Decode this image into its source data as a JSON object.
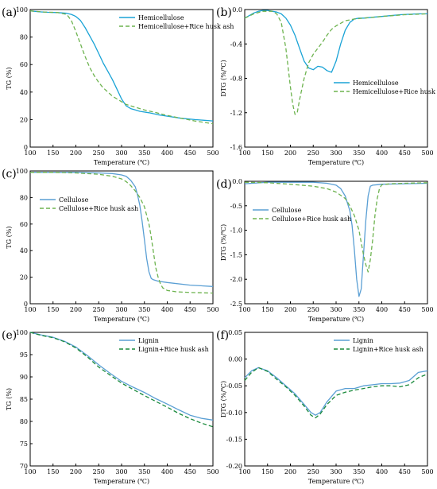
{
  "chart_data": [
    {
      "panel": "(a)",
      "type": "line",
      "xlabel": "Temperature (℃)",
      "ylabel": "TG (%)",
      "xlim": [
        100,
        500
      ],
      "ylim": [
        0,
        100
      ],
      "xticks": [
        100,
        150,
        200,
        250,
        300,
        350,
        400,
        450,
        500
      ],
      "yticks": [
        0,
        20,
        40,
        60,
        80,
        100
      ],
      "legend_position": "top-right",
      "series": [
        {
          "name": "Hemicellulose",
          "color": "#1aa3d6",
          "dash": "solid",
          "x": [
            100,
            120,
            140,
            160,
            180,
            190,
            200,
            210,
            220,
            230,
            240,
            250,
            260,
            270,
            280,
            290,
            300,
            310,
            320,
            330,
            340,
            360,
            380,
            400,
            430,
            460,
            500
          ],
          "y": [
            99,
            98.3,
            98,
            97.8,
            97.3,
            96.5,
            95,
            92,
            87,
            81,
            75,
            68,
            61,
            55,
            49,
            42,
            35,
            30,
            28,
            27,
            26,
            25,
            23.5,
            22.5,
            21,
            20,
            19
          ]
        },
        {
          "name": "Hemicellulose+Rice husk ash",
          "color": "#6db34f",
          "dash": "dashed",
          "x": [
            100,
            130,
            160,
            180,
            190,
            200,
            210,
            220,
            230,
            240,
            250,
            260,
            270,
            280,
            290,
            300,
            310,
            320,
            330,
            340,
            350,
            370,
            400,
            430,
            460,
            500
          ],
          "y": [
            99,
            98.2,
            97.8,
            96.5,
            92,
            84,
            75,
            66,
            58,
            52,
            47,
            43,
            40,
            37,
            35,
            33,
            31,
            30,
            29,
            28,
            27,
            25.5,
            23,
            21,
            19,
            17
          ]
        }
      ]
    },
    {
      "panel": "(b)",
      "type": "line",
      "xlabel": "Temperature (℃)",
      "ylabel": "DTG (%/℃)",
      "xlim": [
        100,
        500
      ],
      "ylim": [
        -1.6,
        0
      ],
      "xticks": [
        100,
        150,
        200,
        250,
        300,
        350,
        400,
        450,
        500
      ],
      "yticks": [
        -1.6,
        -1.2,
        -0.8,
        -0.4,
        0.0
      ],
      "legend_position": "bottom-right",
      "series": [
        {
          "name": "Hemicellulose",
          "color": "#1aa3d6",
          "dash": "solid",
          "x": [
            100,
            110,
            120,
            130,
            140,
            150,
            160,
            170,
            180,
            190,
            200,
            210,
            220,
            230,
            240,
            250,
            260,
            270,
            280,
            290,
            300,
            310,
            320,
            330,
            340,
            350,
            360,
            380,
            400,
            440,
            480,
            500
          ],
          "y": [
            -0.1,
            -0.07,
            -0.04,
            -0.02,
            -0.01,
            -0.01,
            -0.02,
            -0.03,
            -0.05,
            -0.1,
            -0.18,
            -0.3,
            -0.45,
            -0.6,
            -0.68,
            -0.7,
            -0.66,
            -0.67,
            -0.71,
            -0.73,
            -0.6,
            -0.4,
            -0.24,
            -0.15,
            -0.11,
            -0.1,
            -0.1,
            -0.09,
            -0.08,
            -0.06,
            -0.05,
            -0.05
          ]
        },
        {
          "name": "Hemicellulose+Rice husk ash",
          "color": "#6db34f",
          "dash": "dashed",
          "x": [
            100,
            120,
            140,
            160,
            170,
            180,
            190,
            200,
            205,
            210,
            215,
            220,
            230,
            240,
            250,
            260,
            270,
            280,
            290,
            300,
            310,
            320,
            330,
            340,
            360,
            400,
            450,
            500
          ],
          "y": [
            -0.1,
            -0.05,
            -0.02,
            -0.02,
            -0.05,
            -0.15,
            -0.45,
            -0.9,
            -1.1,
            -1.22,
            -1.2,
            -1.05,
            -0.8,
            -0.62,
            -0.52,
            -0.45,
            -0.38,
            -0.3,
            -0.23,
            -0.19,
            -0.16,
            -0.13,
            -0.12,
            -0.11,
            -0.1,
            -0.08,
            -0.06,
            -0.05
          ]
        }
      ]
    },
    {
      "panel": "(c)",
      "type": "line",
      "xlabel": "Temperature (℃)",
      "ylabel": "TG (%)",
      "xlim": [
        100,
        500
      ],
      "ylim": [
        0,
        100
      ],
      "xticks": [
        100,
        150,
        200,
        250,
        300,
        350,
        400,
        450,
        500
      ],
      "yticks": [
        0,
        20,
        40,
        60,
        80,
        100
      ],
      "legend_position": "top-left",
      "series": [
        {
          "name": "Cellulose",
          "color": "#5a9fd4",
          "dash": "solid",
          "x": [
            100,
            150,
            200,
            250,
            280,
            300,
            310,
            320,
            330,
            335,
            340,
            345,
            350,
            355,
            360,
            365,
            370,
            380,
            400,
            450,
            500
          ],
          "y": [
            99,
            99,
            99,
            98.5,
            98,
            97,
            96,
            93,
            88,
            82,
            74,
            62,
            48,
            34,
            24,
            19,
            18,
            17,
            16,
            14,
            13
          ]
        },
        {
          "name": "Cellulose+Rice husk ash",
          "color": "#6db34f",
          "dash": "dashed",
          "x": [
            100,
            150,
            200,
            250,
            280,
            300,
            310,
            320,
            330,
            340,
            350,
            360,
            365,
            370,
            375,
            380,
            385,
            390,
            400,
            420,
            450,
            500
          ],
          "y": [
            99,
            99,
            98.5,
            97.5,
            96,
            94,
            92,
            89,
            85,
            80,
            73,
            60,
            50,
            38,
            27,
            20,
            15,
            12,
            10,
            9,
            8.5,
            8
          ]
        }
      ]
    },
    {
      "panel": "(d)",
      "type": "line",
      "xlabel": "Temperature (℃)",
      "ylabel": "DTG (%/℃)",
      "xlim": [
        100,
        500
      ],
      "ylim": [
        -2.5,
        0
      ],
      "xticks": [
        100,
        150,
        200,
        250,
        300,
        350,
        400,
        450,
        500
      ],
      "yticks": [
        -2.5,
        -2.0,
        -1.5,
        -1.0,
        -0.5,
        0.0
      ],
      "legend_position": "center-left",
      "series": [
        {
          "name": "Cellulose",
          "color": "#5a9fd4",
          "dash": "solid",
          "x": [
            100,
            150,
            200,
            250,
            280,
            300,
            310,
            320,
            330,
            335,
            340,
            345,
            350,
            355,
            360,
            365,
            370,
            375,
            380,
            390,
            400,
            450,
            500
          ],
          "y": [
            -0.05,
            -0.02,
            -0.02,
            -0.02,
            -0.04,
            -0.08,
            -0.15,
            -0.3,
            -0.6,
            -0.9,
            -1.4,
            -2.0,
            -2.35,
            -2.2,
            -1.5,
            -0.8,
            -0.3,
            -0.1,
            -0.08,
            -0.07,
            -0.06,
            -0.05,
            -0.04
          ]
        },
        {
          "name": "Cellulose+Rice husk ash",
          "color": "#6db34f",
          "dash": "dashed",
          "x": [
            100,
            150,
            200,
            250,
            280,
            300,
            320,
            330,
            340,
            350,
            355,
            360,
            365,
            370,
            375,
            380,
            385,
            390,
            395,
            400,
            420,
            450,
            500
          ],
          "y": [
            -0.02,
            -0.03,
            -0.06,
            -0.1,
            -0.15,
            -0.22,
            -0.35,
            -0.5,
            -0.7,
            -1.0,
            -1.25,
            -1.5,
            -1.7,
            -1.85,
            -1.6,
            -1.2,
            -0.7,
            -0.35,
            -0.15,
            -0.07,
            -0.05,
            -0.04,
            -0.03
          ]
        }
      ]
    },
    {
      "panel": "(e)",
      "type": "line",
      "xlabel": "Temperature (℃)",
      "ylabel": "TG (%)",
      "xlim": [
        100,
        500
      ],
      "ylim": [
        70,
        100
      ],
      "xticks": [
        100,
        150,
        200,
        250,
        300,
        350,
        400,
        450,
        500
      ],
      "yticks": [
        70,
        75,
        80,
        85,
        90,
        95,
        100
      ],
      "legend_position": "top-right",
      "series": [
        {
          "name": "Lignin",
          "color": "#5a9fd4",
          "dash": "solid",
          "x": [
            100,
            125,
            150,
            175,
            200,
            225,
            250,
            275,
            300,
            325,
            350,
            375,
            400,
            425,
            450,
            475,
            500
          ],
          "y": [
            100,
            99.4,
            98.9,
            98,
            96.7,
            94.8,
            92.7,
            90.8,
            89,
            87.7,
            86.5,
            85.1,
            83.9,
            82.6,
            81.4,
            80.7,
            80.3
          ]
        },
        {
          "name": "Lignin+Rice husk ash",
          "color": "#1a8a3c",
          "dash": "dashed",
          "x": [
            100,
            125,
            150,
            175,
            200,
            225,
            250,
            275,
            300,
            325,
            350,
            375,
            400,
            425,
            450,
            475,
            500
          ],
          "y": [
            100,
            99.3,
            98.8,
            97.9,
            96.5,
            94.5,
            92.2,
            90.4,
            88.6,
            87.2,
            85.8,
            84.5,
            83.2,
            81.8,
            80.6,
            79.6,
            78.8
          ]
        }
      ]
    },
    {
      "panel": "(f)",
      "type": "line",
      "xlabel": "Temperature (℃)",
      "ylabel": "DTG (%/℃)",
      "xlim": [
        100,
        500
      ],
      "ylim": [
        -0.2,
        0.05
      ],
      "xticks": [
        100,
        150,
        200,
        250,
        300,
        350,
        400,
        450,
        500
      ],
      "yticks": [
        -0.2,
        -0.15,
        -0.1,
        -0.05,
        0.0,
        0.05
      ],
      "legend_position": "top-right",
      "series": [
        {
          "name": "Lignin",
          "color": "#5a9fd4",
          "dash": "solid",
          "x": [
            100,
            115,
            130,
            150,
            170,
            190,
            210,
            230,
            245,
            255,
            265,
            280,
            300,
            320,
            340,
            360,
            380,
            400,
            420,
            440,
            460,
            480,
            500
          ],
          "y": [
            -0.035,
            -0.022,
            -0.016,
            -0.022,
            -0.035,
            -0.05,
            -0.065,
            -0.085,
            -0.1,
            -0.105,
            -0.1,
            -0.08,
            -0.06,
            -0.055,
            -0.055,
            -0.05,
            -0.048,
            -0.046,
            -0.046,
            -0.045,
            -0.04,
            -0.025,
            -0.022
          ]
        },
        {
          "name": "Lignin+Rice husk ash",
          "color": "#1a8a3c",
          "dash": "dashed",
          "x": [
            100,
            115,
            130,
            150,
            170,
            190,
            210,
            230,
            245,
            255,
            265,
            280,
            300,
            320,
            340,
            360,
            380,
            400,
            420,
            440,
            460,
            480,
            500
          ],
          "y": [
            -0.04,
            -0.025,
            -0.016,
            -0.023,
            -0.038,
            -0.052,
            -0.068,
            -0.088,
            -0.105,
            -0.11,
            -0.103,
            -0.085,
            -0.068,
            -0.062,
            -0.058,
            -0.055,
            -0.052,
            -0.05,
            -0.05,
            -0.052,
            -0.048,
            -0.035,
            -0.028
          ]
        }
      ]
    }
  ]
}
